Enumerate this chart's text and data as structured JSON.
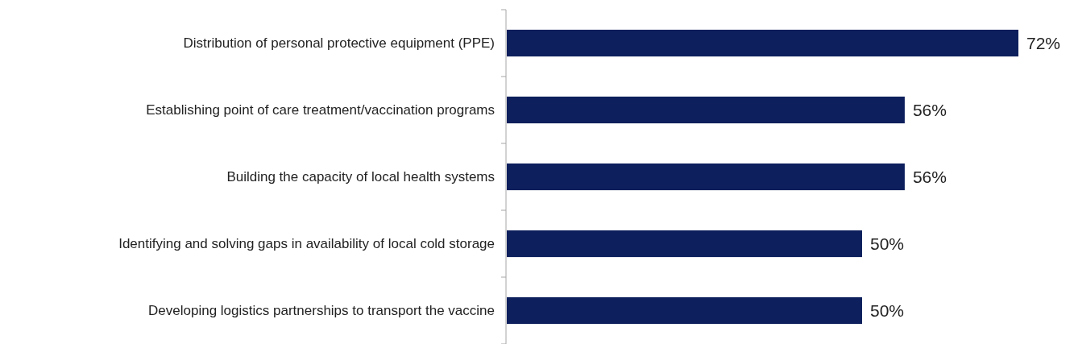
{
  "chart_data": {
    "type": "bar",
    "orientation": "horizontal",
    "categories": [
      "Distribution of personal protective equipment (PPE)",
      "Establishing point of care treatment/vaccination programs",
      "Building the capacity of local health systems",
      "Identifying and solving gaps in availability of local cold storage",
      "Developing logistics partnerships to transport the vaccine"
    ],
    "values": [
      72,
      56,
      56,
      50,
      50
    ],
    "value_labels": [
      "72%",
      "56%",
      "56%",
      "50%",
      "50%"
    ],
    "color": "#0d1f5c"
  }
}
